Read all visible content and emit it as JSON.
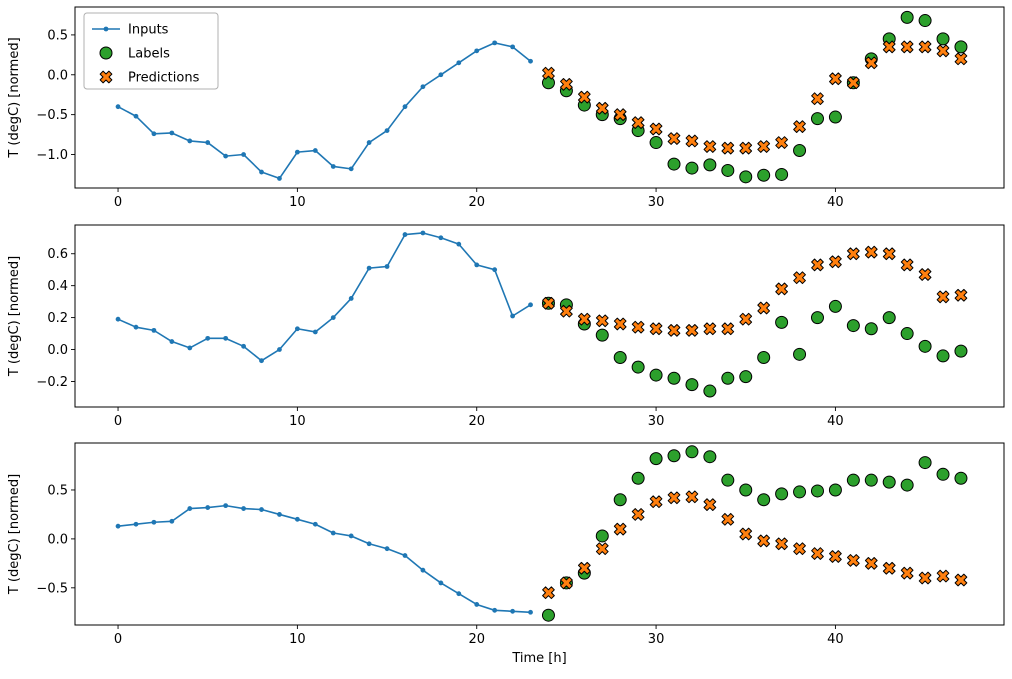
{
  "figure": {
    "background": "#ffffff",
    "xlabel": "Time [h]",
    "ylabel": "T (degC) [normed]",
    "legend": {
      "position": "upper-left",
      "items": [
        {
          "label": "Inputs",
          "marker": "line-dot",
          "color": "#1f77b4"
        },
        {
          "label": "Labels",
          "marker": "circle",
          "color": "#2ca02c"
        },
        {
          "label": "Predictions",
          "marker": "x",
          "color": "#ff7f0e"
        }
      ]
    }
  },
  "chart_data": [
    {
      "type": "line",
      "subplot": 1,
      "ylabel": "T (degC) [normed]",
      "xlabel": "",
      "xticks": [
        0,
        10,
        20,
        30,
        40
      ],
      "yticks": [
        -1.0,
        -0.5,
        0.0,
        0.5
      ],
      "xlim": [
        -2.4,
        49.4
      ],
      "ylim": [
        -1.42,
        0.85
      ],
      "grid": false,
      "series": [
        {
          "name": "Inputs",
          "style": "line-dot",
          "color": "#1f77b4",
          "x": [
            0,
            1,
            2,
            3,
            4,
            5,
            6,
            7,
            8,
            9,
            10,
            11,
            12,
            13,
            14,
            15,
            16,
            17,
            18,
            19,
            20,
            21,
            22,
            23
          ],
          "values": [
            -0.4,
            -0.52,
            -0.74,
            -0.73,
            -0.83,
            -0.85,
            -1.02,
            -1.0,
            -1.22,
            -1.3,
            -0.97,
            -0.95,
            -1.15,
            -1.18,
            -0.85,
            -0.7,
            -0.4,
            -0.15,
            0.0,
            0.15,
            0.3,
            0.4,
            0.35,
            0.17
          ]
        },
        {
          "name": "Labels",
          "style": "circle",
          "color": "#2ca02c",
          "x": [
            24,
            25,
            26,
            27,
            28,
            29,
            30,
            31,
            32,
            33,
            34,
            35,
            36,
            37,
            38,
            39,
            40,
            41,
            42,
            43,
            44,
            45,
            46,
            47
          ],
          "values": [
            -0.1,
            -0.2,
            -0.38,
            -0.5,
            -0.55,
            -0.7,
            -0.85,
            -1.12,
            -1.17,
            -1.13,
            -1.2,
            -1.28,
            -1.26,
            -1.25,
            -0.95,
            -0.55,
            -0.53,
            -0.1,
            0.2,
            0.45,
            0.72,
            0.68,
            0.45,
            0.35
          ]
        },
        {
          "name": "Predictions",
          "style": "x",
          "color": "#ff7f0e",
          "x": [
            24,
            25,
            26,
            27,
            28,
            29,
            30,
            31,
            32,
            33,
            34,
            35,
            36,
            37,
            38,
            39,
            40,
            41,
            42,
            43,
            44,
            45,
            46,
            47
          ],
          "values": [
            0.02,
            -0.12,
            -0.28,
            -0.42,
            -0.5,
            -0.6,
            -0.68,
            -0.8,
            -0.83,
            -0.9,
            -0.92,
            -0.92,
            -0.9,
            -0.85,
            -0.65,
            -0.3,
            -0.05,
            -0.1,
            0.15,
            0.35,
            0.35,
            0.35,
            0.3,
            0.2
          ]
        }
      ]
    },
    {
      "type": "line",
      "subplot": 2,
      "ylabel": "T (degC) [normed]",
      "xlabel": "",
      "xticks": [
        0,
        10,
        20,
        30,
        40
      ],
      "yticks": [
        -0.2,
        0.0,
        0.2,
        0.4,
        0.6
      ],
      "xlim": [
        -2.4,
        49.4
      ],
      "ylim": [
        -0.36,
        0.78
      ],
      "grid": false,
      "series": [
        {
          "name": "Inputs",
          "style": "line-dot",
          "color": "#1f77b4",
          "x": [
            0,
            1,
            2,
            3,
            4,
            5,
            6,
            7,
            8,
            9,
            10,
            11,
            12,
            13,
            14,
            15,
            16,
            17,
            18,
            19,
            20,
            21,
            22,
            23
          ],
          "values": [
            0.19,
            0.14,
            0.12,
            0.05,
            0.01,
            0.07,
            0.07,
            0.02,
            -0.07,
            0.0,
            0.13,
            0.11,
            0.2,
            0.32,
            0.51,
            0.52,
            0.72,
            0.73,
            0.7,
            0.66,
            0.53,
            0.5,
            0.21,
            0.28
          ]
        },
        {
          "name": "Labels",
          "style": "circle",
          "color": "#2ca02c",
          "x": [
            24,
            25,
            26,
            27,
            28,
            29,
            30,
            31,
            32,
            33,
            34,
            35,
            36,
            37,
            38,
            39,
            40,
            41,
            42,
            43,
            44,
            45,
            46,
            47
          ],
          "values": [
            0.29,
            0.28,
            0.16,
            0.09,
            -0.05,
            -0.11,
            -0.16,
            -0.18,
            -0.22,
            -0.26,
            -0.18,
            -0.17,
            -0.05,
            0.17,
            -0.03,
            0.2,
            0.27,
            0.15,
            0.13,
            0.2,
            0.1,
            0.02,
            -0.04,
            -0.01
          ]
        },
        {
          "name": "Predictions",
          "style": "x",
          "color": "#ff7f0e",
          "x": [
            24,
            25,
            26,
            27,
            28,
            29,
            30,
            31,
            32,
            33,
            34,
            35,
            36,
            37,
            38,
            39,
            40,
            41,
            42,
            43,
            44,
            45,
            46,
            47
          ],
          "values": [
            0.29,
            0.24,
            0.19,
            0.18,
            0.16,
            0.14,
            0.13,
            0.12,
            0.12,
            0.13,
            0.13,
            0.19,
            0.26,
            0.38,
            0.45,
            0.53,
            0.55,
            0.6,
            0.61,
            0.6,
            0.53,
            0.47,
            0.33,
            0.34
          ]
        }
      ]
    },
    {
      "type": "line",
      "subplot": 3,
      "ylabel": "T (degC) [normed]",
      "xlabel": "Time [h]",
      "xticks": [
        0,
        10,
        20,
        30,
        40
      ],
      "yticks": [
        -0.5,
        0.0,
        0.5
      ],
      "xlim": [
        -2.4,
        49.4
      ],
      "ylim": [
        -0.88,
        0.98
      ],
      "grid": false,
      "series": [
        {
          "name": "Inputs",
          "style": "line-dot",
          "color": "#1f77b4",
          "x": [
            0,
            1,
            2,
            3,
            4,
            5,
            6,
            7,
            8,
            9,
            10,
            11,
            12,
            13,
            14,
            15,
            16,
            17,
            18,
            19,
            20,
            21,
            22,
            23
          ],
          "values": [
            0.13,
            0.15,
            0.17,
            0.18,
            0.31,
            0.32,
            0.34,
            0.31,
            0.3,
            0.25,
            0.2,
            0.15,
            0.06,
            0.03,
            -0.05,
            -0.1,
            -0.17,
            -0.32,
            -0.45,
            -0.56,
            -0.67,
            -0.73,
            -0.74,
            -0.75
          ]
        },
        {
          "name": "Labels",
          "style": "circle",
          "color": "#2ca02c",
          "x": [
            24,
            25,
            26,
            27,
            28,
            29,
            30,
            31,
            32,
            33,
            34,
            35,
            36,
            37,
            38,
            39,
            40,
            41,
            42,
            43,
            44,
            45,
            46,
            47
          ],
          "values": [
            -0.78,
            -0.45,
            -0.35,
            0.03,
            0.4,
            0.62,
            0.82,
            0.85,
            0.89,
            0.84,
            0.6,
            0.5,
            0.4,
            0.46,
            0.48,
            0.49,
            0.5,
            0.6,
            0.6,
            0.58,
            0.55,
            0.78,
            0.66,
            0.62
          ]
        },
        {
          "name": "Predictions",
          "style": "x",
          "color": "#ff7f0e",
          "x": [
            24,
            25,
            26,
            27,
            28,
            29,
            30,
            31,
            32,
            33,
            34,
            35,
            36,
            37,
            38,
            39,
            40,
            41,
            42,
            43,
            44,
            45,
            46,
            47
          ],
          "values": [
            -0.55,
            -0.45,
            -0.3,
            -0.1,
            0.1,
            0.25,
            0.38,
            0.42,
            0.43,
            0.35,
            0.2,
            0.05,
            -0.02,
            -0.05,
            -0.1,
            -0.15,
            -0.18,
            -0.22,
            -0.25,
            -0.3,
            -0.35,
            -0.4,
            -0.38,
            -0.42
          ]
        }
      ]
    }
  ]
}
